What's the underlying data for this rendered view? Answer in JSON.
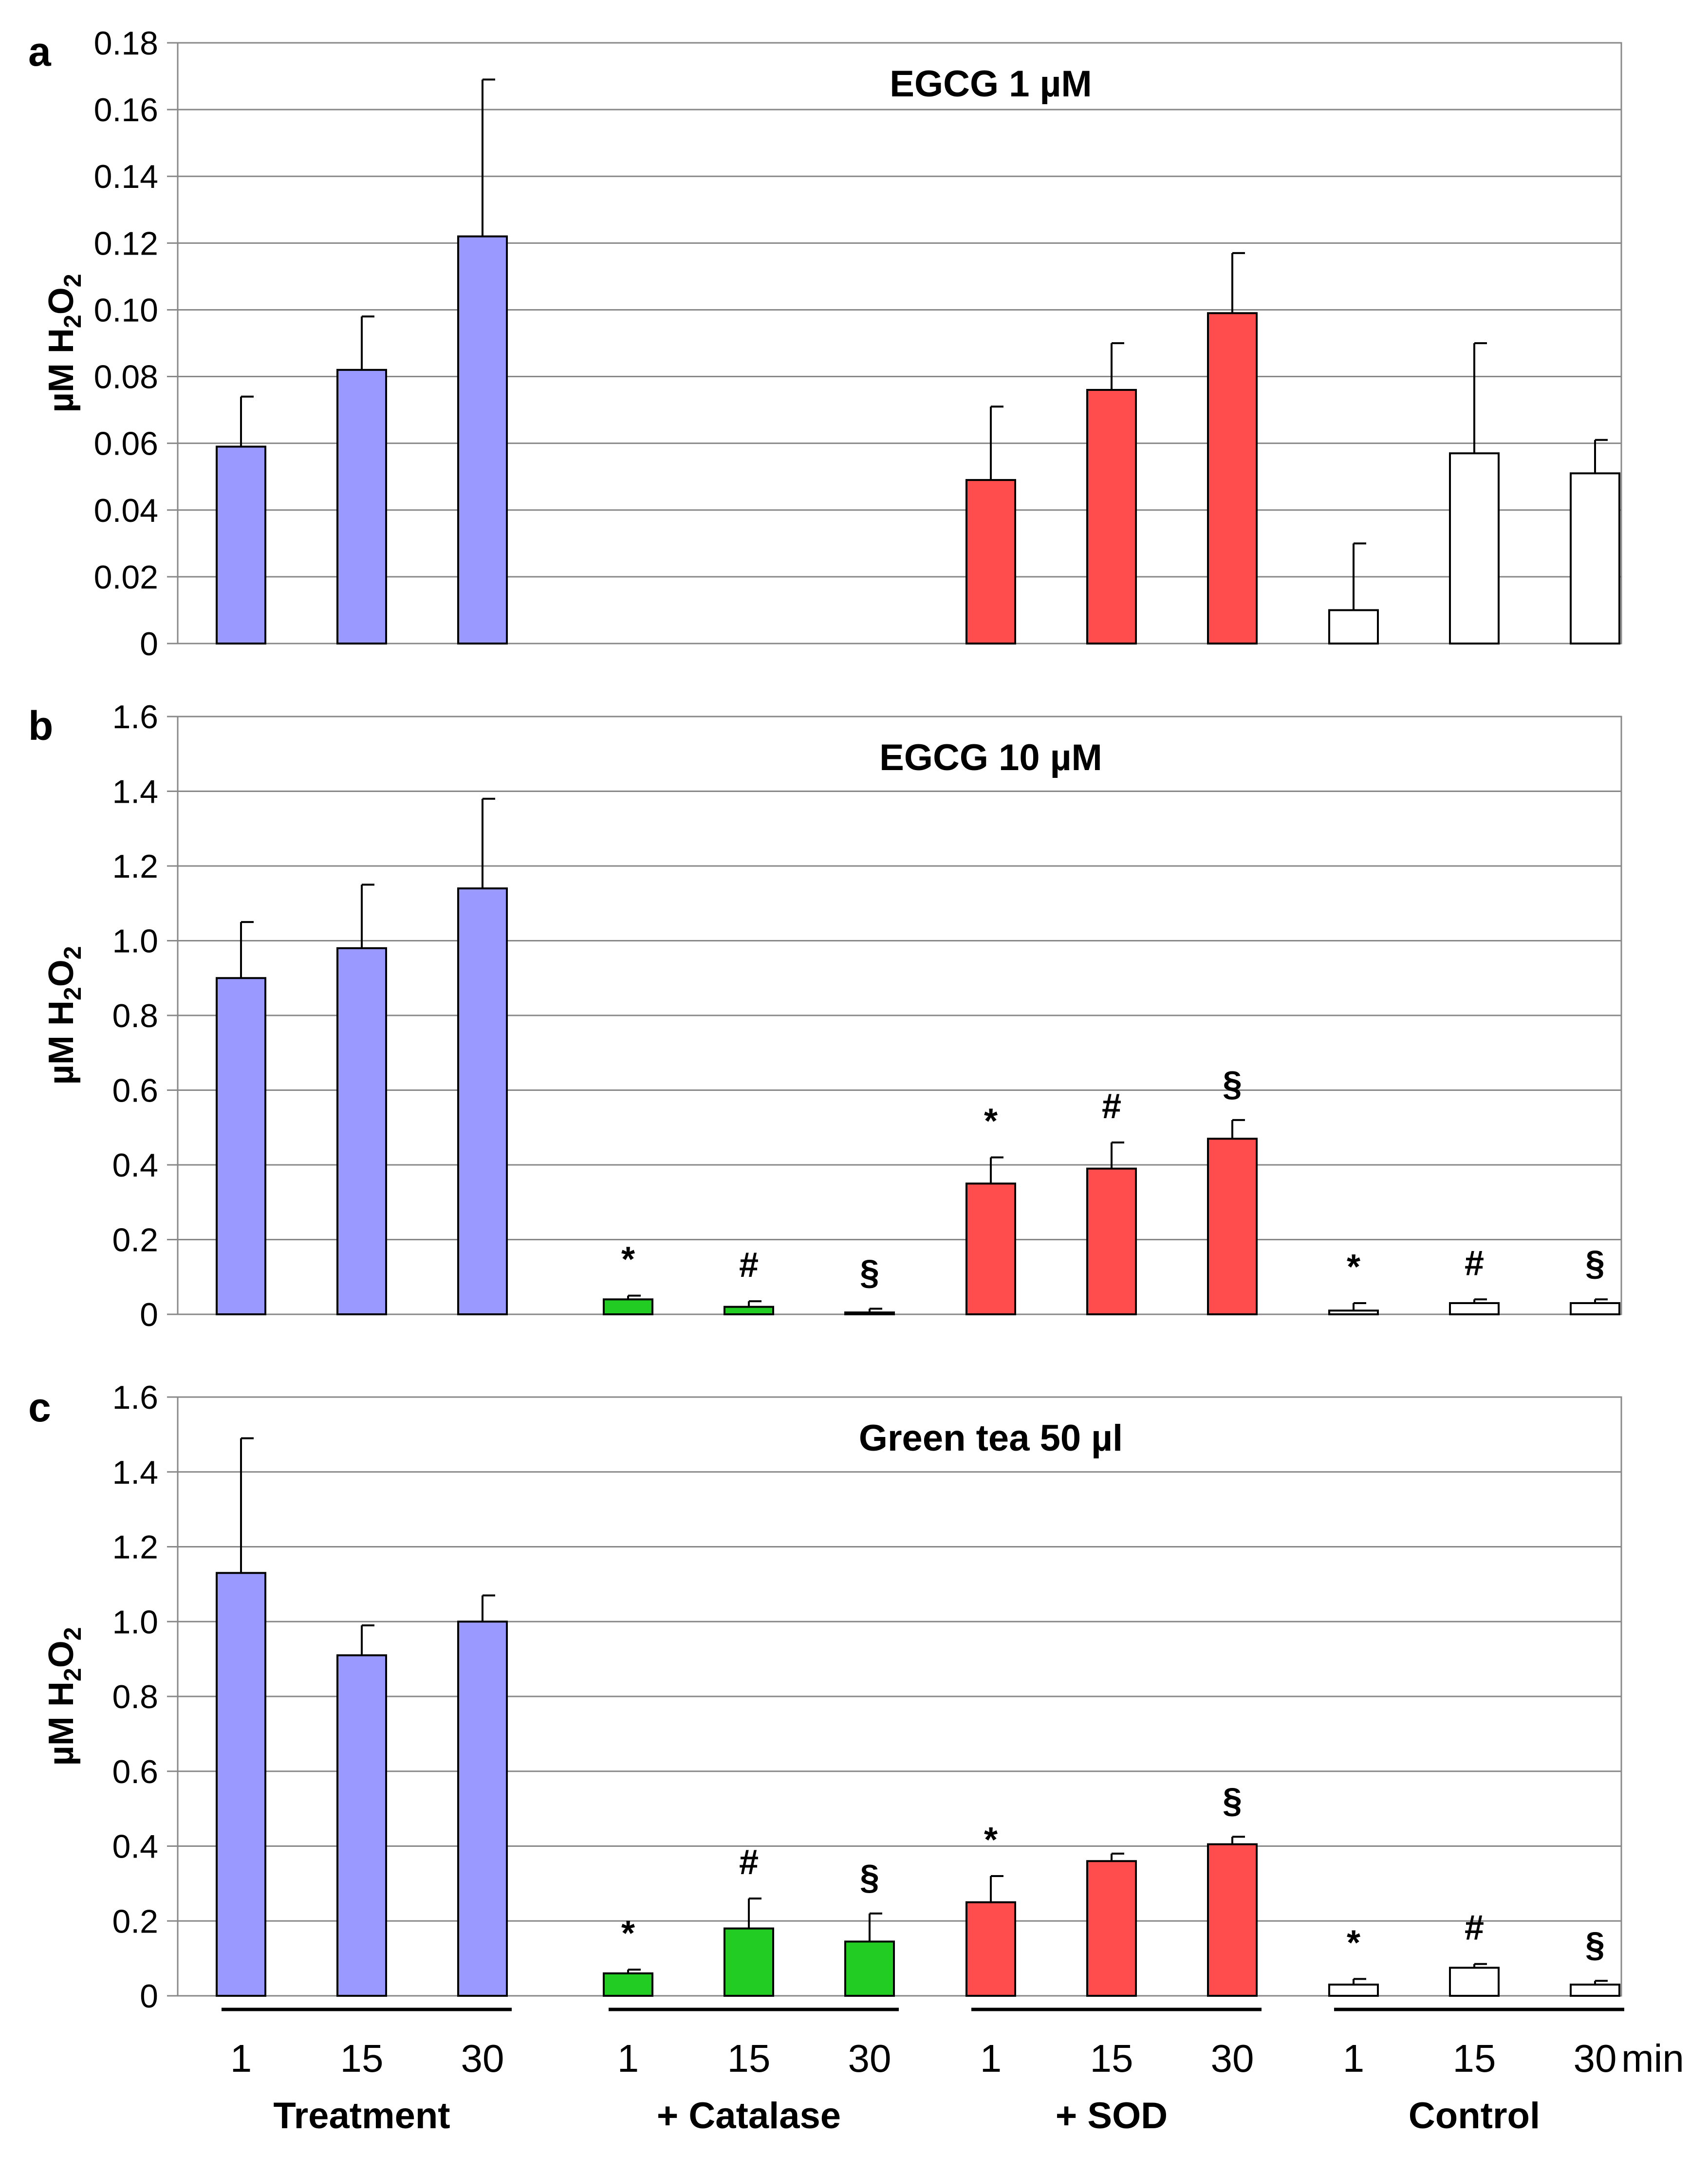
{
  "figure": {
    "x_ticks": [
      "1",
      "15",
      "30",
      "1",
      "15",
      "30",
      "1",
      "15",
      "30",
      "1",
      "15",
      "30"
    ],
    "x_unit": "min",
    "groups": [
      "Treatment",
      "+ Catalase",
      "+ SOD",
      "Control"
    ]
  },
  "colors": {
    "treatment": "#9999ff",
    "catalase": "#22cc22",
    "sod": "#ff4d4d",
    "control": "#ffffff",
    "grid": "#888888",
    "axis": "#000000"
  },
  "chart_data": [
    {
      "type": "bar",
      "panel_label": "a",
      "title": "EGCG 1 µM",
      "ylabel": "µM H2O2",
      "ylim": [
        0,
        0.18
      ],
      "yticks": [
        "0",
        "0.02",
        "0.04",
        "0.06",
        "0.08",
        "0.10",
        "0.12",
        "0.14",
        "0.16",
        "0.18"
      ],
      "series": [
        {
          "name": "Treatment",
          "color_key": "treatment",
          "values": [
            0.059,
            0.082,
            0.122
          ],
          "errors": [
            0.015,
            0.016,
            0.047
          ],
          "marks": [
            "",
            "",
            ""
          ]
        },
        {
          "name": "+ Catalase",
          "color_key": "catalase",
          "values": [
            null,
            null,
            null
          ],
          "errors": [
            null,
            null,
            null
          ],
          "marks": [
            "",
            "",
            ""
          ]
        },
        {
          "name": "+ SOD",
          "color_key": "sod",
          "values": [
            0.049,
            0.076,
            0.099
          ],
          "errors": [
            0.022,
            0.014,
            0.018
          ],
          "marks": [
            "",
            "",
            ""
          ]
        },
        {
          "name": "Control",
          "color_key": "control",
          "values": [
            0.01,
            0.057,
            0.051
          ],
          "errors": [
            0.02,
            0.033,
            0.01
          ],
          "marks": [
            "",
            "",
            ""
          ]
        }
      ]
    },
    {
      "type": "bar",
      "panel_label": "b",
      "title": "EGCG 10 µM",
      "ylabel": "µM H2O2",
      "ylim": [
        0,
        1.6
      ],
      "yticks": [
        "0",
        "0.2",
        "0.4",
        "0.6",
        "0.8",
        "1.0",
        "1.2",
        "1.4",
        "1.6"
      ],
      "series": [
        {
          "name": "Treatment",
          "color_key": "treatment",
          "values": [
            0.9,
            0.98,
            1.14
          ],
          "errors": [
            0.15,
            0.17,
            0.24
          ],
          "marks": [
            "",
            "",
            ""
          ]
        },
        {
          "name": "+ Catalase",
          "color_key": "catalase",
          "values": [
            0.04,
            0.02,
            0.005
          ],
          "errors": [
            0.01,
            0.015,
            0.01
          ],
          "marks": [
            "*",
            "#",
            "§"
          ]
        },
        {
          "name": "+ SOD",
          "color_key": "sod",
          "values": [
            0.35,
            0.39,
            0.47
          ],
          "errors": [
            0.07,
            0.07,
            0.05
          ],
          "marks": [
            "*",
            "#",
            "§"
          ]
        },
        {
          "name": "Control",
          "color_key": "control",
          "values": [
            0.01,
            0.03,
            0.03
          ],
          "errors": [
            0.02,
            0.01,
            0.01
          ],
          "marks": [
            "*",
            "#",
            "§"
          ]
        }
      ]
    },
    {
      "type": "bar",
      "panel_label": "c",
      "title": "Green tea 50 µl",
      "ylabel": "µM H2O2",
      "ylim": [
        0,
        1.6
      ],
      "yticks": [
        "0",
        "0.2",
        "0.4",
        "0.6",
        "0.8",
        "1.0",
        "1.2",
        "1.4",
        "1.6"
      ],
      "series": [
        {
          "name": "Treatment",
          "color_key": "treatment",
          "values": [
            1.13,
            0.91,
            1.0
          ],
          "errors": [
            0.36,
            0.08,
            0.07
          ],
          "marks": [
            "",
            "",
            ""
          ]
        },
        {
          "name": "+ Catalase",
          "color_key": "catalase",
          "values": [
            0.06,
            0.18,
            0.145
          ],
          "errors": [
            0.01,
            0.08,
            0.075
          ],
          "marks": [
            "*",
            "#",
            "§"
          ]
        },
        {
          "name": "+ SOD",
          "color_key": "sod",
          "values": [
            0.25,
            0.36,
            0.405
          ],
          "errors": [
            0.07,
            0.02,
            0.02
          ],
          "marks": [
            "*",
            "",
            "§"
          ]
        },
        {
          "name": "Control",
          "color_key": "control",
          "values": [
            0.03,
            0.075,
            0.03
          ],
          "errors": [
            0.015,
            0.01,
            0.01
          ],
          "marks": [
            "*",
            "#",
            "§"
          ]
        }
      ]
    }
  ]
}
